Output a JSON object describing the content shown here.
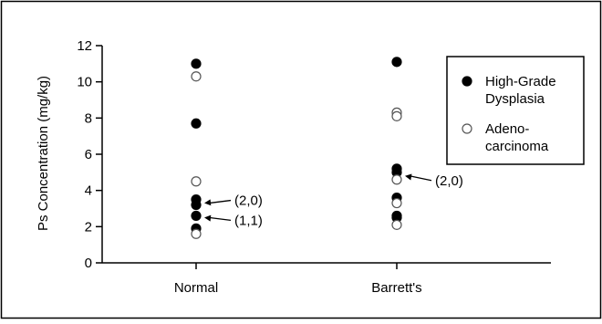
{
  "chart_data": {
    "type": "scatter",
    "ylabel": "Ps Concentration (mg/kg)",
    "xlabel": "",
    "categories": [
      "Normal",
      "Barrett's"
    ],
    "ylim": [
      0,
      12
    ],
    "yticks": [
      "0",
      "2",
      "4",
      "6",
      "8",
      "10",
      "12"
    ],
    "grid": false,
    "legend_position": "right",
    "series": [
      {
        "name": "High-Grade Dysplasia",
        "marker": "filled-circle",
        "color": "#000000",
        "points": [
          {
            "category": "Normal",
            "y": 11.0
          },
          {
            "category": "Normal",
            "y": 7.7
          },
          {
            "category": "Normal",
            "y": 3.5
          },
          {
            "category": "Normal",
            "y": 3.2
          },
          {
            "category": "Normal",
            "y": 2.6
          },
          {
            "category": "Normal",
            "y": 1.9
          },
          {
            "category": "Barrett's",
            "y": 11.1
          },
          {
            "category": "Barrett's",
            "y": 5.2
          },
          {
            "category": "Barrett's",
            "y": 5.0
          },
          {
            "category": "Barrett's",
            "y": 3.6
          },
          {
            "category": "Barrett's",
            "y": 2.6
          },
          {
            "category": "Barrett's",
            "y": 2.5
          }
        ]
      },
      {
        "name": "Adeno-carcinoma",
        "marker": "open-circle",
        "color": "#000000",
        "points": [
          {
            "category": "Normal",
            "y": 10.3
          },
          {
            "category": "Normal",
            "y": 4.5
          },
          {
            "category": "Normal",
            "y": 1.6
          },
          {
            "category": "Barrett's",
            "y": 8.3
          },
          {
            "category": "Barrett's",
            "y": 8.1
          },
          {
            "category": "Barrett's",
            "y": 4.6
          },
          {
            "category": "Barrett's",
            "y": 3.3
          },
          {
            "category": "Barrett's",
            "y": 2.1
          }
        ]
      }
    ],
    "annotations": [
      {
        "text": "(2,0)",
        "category": "Normal",
        "y": 3.3
      },
      {
        "text": "(1,1)",
        "category": "Normal",
        "y": 2.5
      },
      {
        "text": "(2,0)",
        "category": "Barrett's",
        "y": 4.8
      }
    ],
    "legend": {
      "entries": [
        {
          "lines": [
            "High-Grade",
            "Dysplasia"
          ],
          "marker": "filled-circle"
        },
        {
          "lines": [
            "Adeno-",
            "carcinoma"
          ],
          "marker": "open-circle"
        }
      ]
    }
  }
}
